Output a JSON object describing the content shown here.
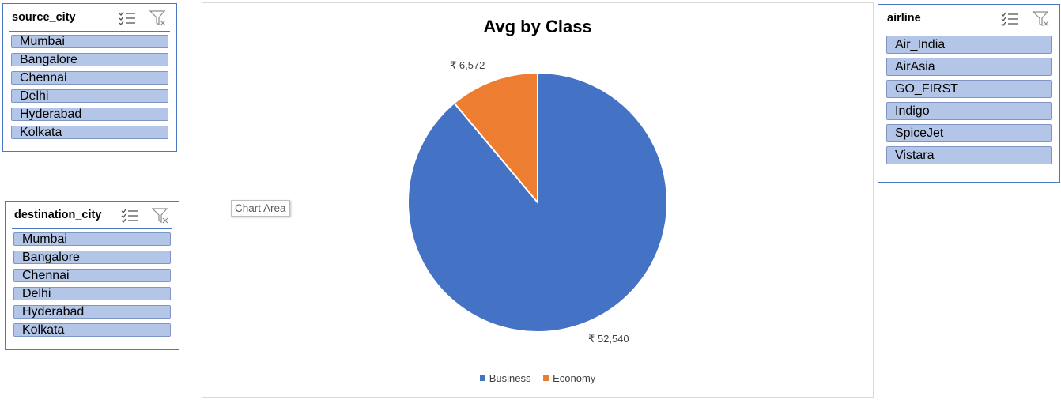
{
  "slicers": {
    "source_city": {
      "title": "source_city",
      "items": [
        "Mumbai",
        "Bangalore",
        "Chennai",
        "Delhi",
        "Hyderabad",
        "Kolkata"
      ]
    },
    "destination_city": {
      "title": "destination_city",
      "items": [
        "Mumbai",
        "Bangalore",
        "Chennai",
        "Delhi",
        "Hyderabad",
        "Kolkata"
      ]
    },
    "airline": {
      "title": "airline",
      "items": [
        "Air_India",
        "AirAsia",
        "GO_FIRST",
        "Indigo",
        "SpiceJet",
        "Vistara"
      ]
    },
    "icons": {
      "multiselect": "multi-select-icon",
      "clear_filter": "clear-filter-icon"
    }
  },
  "tooltip": "Chart Area",
  "chart_data": {
    "type": "pie",
    "title": "Avg by Class",
    "categories": [
      "Business",
      "Economy"
    ],
    "values": [
      52540,
      6572
    ],
    "data_labels": [
      "₹ 52,540",
      "₹ 6,572"
    ],
    "colors": [
      "#4472c4",
      "#ed7d31"
    ],
    "legend_position": "bottom"
  }
}
